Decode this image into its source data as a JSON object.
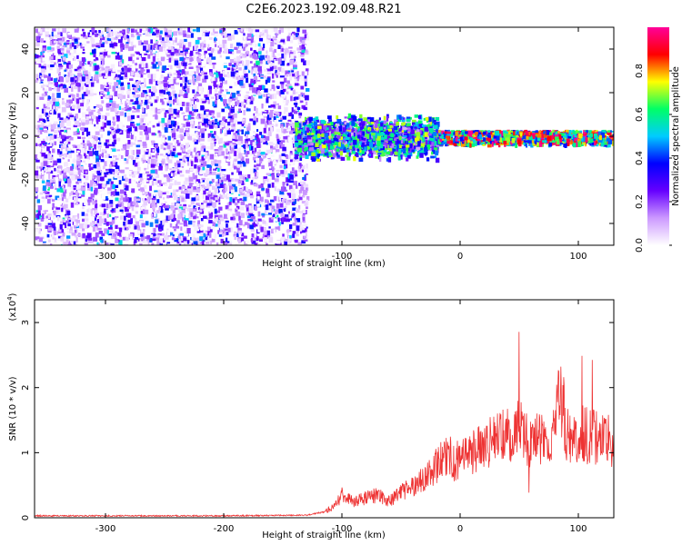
{
  "title": "C2E6.2023.192.09.48.R21",
  "chart_data": [
    {
      "type": "heatmap",
      "panel": "spectrogram",
      "xlabel": "Height of straight line (km)",
      "ylabel": "Frequency (Hz)",
      "xlim": [
        -360,
        130
      ],
      "ylim": [
        -50,
        50
      ],
      "xticks": [
        "-300",
        "-200",
        "-100",
        "0",
        "100"
      ],
      "xtick_values": [
        -300,
        -200,
        -100,
        0,
        100
      ],
      "yticks": [
        "-40",
        "-20",
        "0",
        "20",
        "40"
      ],
      "ytick_values": [
        -40,
        -20,
        0,
        20,
        40
      ],
      "colorbar": {
        "label": "Normalized spectral amplitude",
        "range": [
          0.0,
          1.0
        ],
        "ticks": [
          "0.0",
          "0.2",
          "0.4",
          "0.6",
          "0.8"
        ],
        "tick_values": [
          0.0,
          0.2,
          0.4,
          0.6,
          0.8
        ],
        "colormap": [
          "#ffffff",
          "#cc99ff",
          "#6600ff",
          "#0000ff",
          "#00ccff",
          "#00ff66",
          "#ffff00",
          "#ff0000",
          "#ff0099"
        ]
      },
      "regions": [
        {
          "x_range": [
            -360,
            -130
          ],
          "freq_range": [
            -50,
            50
          ],
          "amplitude": 0.15,
          "pattern": "broadband-noise"
        },
        {
          "x_range": [
            -140,
            -20
          ],
          "freq_range": [
            -12,
            12
          ],
          "amplitude": 0.5,
          "pattern": "signal-band"
        },
        {
          "x_range": [
            -20,
            130
          ],
          "freq_range": [
            -3,
            3
          ],
          "amplitude": 0.85,
          "pattern": "narrow-line"
        }
      ]
    },
    {
      "type": "line",
      "panel": "snr",
      "xlabel": "Height of straight line (km)",
      "ylabel": "SNR (10 * v/v)",
      "yscale_label": "(x10",
      "yscale_exp": "4",
      "xlim": [
        -360,
        130
      ],
      "ylim": [
        0,
        3.35
      ],
      "xticks": [
        "-300",
        "-200",
        "-100",
        "0",
        "100"
      ],
      "xtick_values": [
        -300,
        -200,
        -100,
        0,
        100
      ],
      "yticks": [
        "0",
        "1",
        "2",
        "3"
      ],
      "ytick_values": [
        0,
        1,
        2,
        3
      ],
      "color": "#ee3333",
      "series": [
        {
          "x": [
            -360,
            -300,
            -200,
            -130,
            -115,
            -105,
            -100,
            -90,
            -80,
            -70,
            -60,
            -50,
            -40,
            -30,
            -20,
            -10,
            -5,
            0,
            10,
            20,
            30,
            40,
            45,
            50,
            55,
            60,
            65,
            70,
            75,
            80,
            85,
            90,
            95,
            100,
            110,
            120,
            130
          ],
          "y": [
            0.02,
            0.02,
            0.02,
            0.03,
            0.08,
            0.2,
            0.35,
            0.25,
            0.3,
            0.35,
            0.25,
            0.4,
            0.5,
            0.6,
            0.8,
            1.0,
            0.85,
            0.9,
            1.0,
            1.1,
            1.2,
            1.25,
            1.15,
            1.5,
            1.3,
            1.1,
            1.2,
            1.3,
            0.9,
            1.5,
            2.0,
            1.3,
            1.2,
            1.3,
            1.25,
            1.2,
            1.15
          ]
        }
      ]
    }
  ]
}
